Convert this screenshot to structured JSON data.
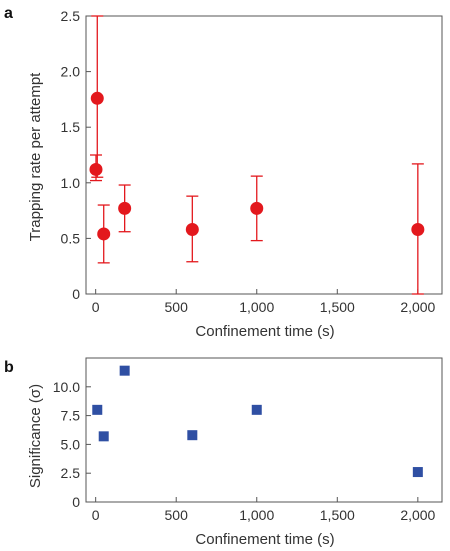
{
  "chart_data": [
    {
      "panel": "a",
      "type": "scatter",
      "xlabel": "Confinement time (s)",
      "ylabel": "Trapping rate per attempt",
      "xlim": [
        -60,
        2150
      ],
      "ylim": [
        0,
        2.5
      ],
      "xticks": [
        0,
        500,
        1000,
        1500,
        2000
      ],
      "xtick_labels": [
        "0",
        "500",
        "1,000",
        "1,500",
        "2,000"
      ],
      "yticks": [
        0,
        0.5,
        1.0,
        1.5,
        2.0,
        2.5
      ],
      "ytick_labels": [
        "0",
        "0.5",
        "1.0",
        "1.5",
        "2.0",
        "2.5"
      ],
      "marker": "circle",
      "color": "#e3181d",
      "points": [
        {
          "x": 2,
          "y": 1.12,
          "err_low": 1.02,
          "err_high": 1.25
        },
        {
          "x": 10,
          "y": 1.76,
          "err_low": 1.05,
          "err_high": 2.5
        },
        {
          "x": 50,
          "y": 0.54,
          "err_low": 0.28,
          "err_high": 0.8
        },
        {
          "x": 180,
          "y": 0.77,
          "err_low": 0.56,
          "err_high": 0.98
        },
        {
          "x": 600,
          "y": 0.58,
          "err_low": 0.29,
          "err_high": 0.88
        },
        {
          "x": 1000,
          "y": 0.77,
          "err_low": 0.48,
          "err_high": 1.06
        },
        {
          "x": 2000,
          "y": 0.58,
          "err_low": 0.0,
          "err_high": 1.17
        }
      ]
    },
    {
      "panel": "b",
      "type": "scatter",
      "xlabel": "Confinement time (s)",
      "ylabel": "Significance (σ)",
      "xlim": [
        -60,
        2150
      ],
      "ylim": [
        0,
        12.5
      ],
      "xticks": [
        0,
        500,
        1000,
        1500,
        2000
      ],
      "xtick_labels": [
        "0",
        "500",
        "1,000",
        "1,500",
        "2,000"
      ],
      "yticks": [
        0,
        2.5,
        5.0,
        7.5,
        10.0
      ],
      "ytick_labels": [
        "0",
        "2.5",
        "5.0",
        "7.5",
        "10.0"
      ],
      "marker": "square",
      "color": "#2f4fa3",
      "points": [
        {
          "x": 10,
          "y": 8.0
        },
        {
          "x": 50,
          "y": 5.7
        },
        {
          "x": 180,
          "y": 11.4
        },
        {
          "x": 600,
          "y": 5.8
        },
        {
          "x": 1000,
          "y": 8.0
        },
        {
          "x": 2000,
          "y": 2.6
        }
      ]
    }
  ]
}
